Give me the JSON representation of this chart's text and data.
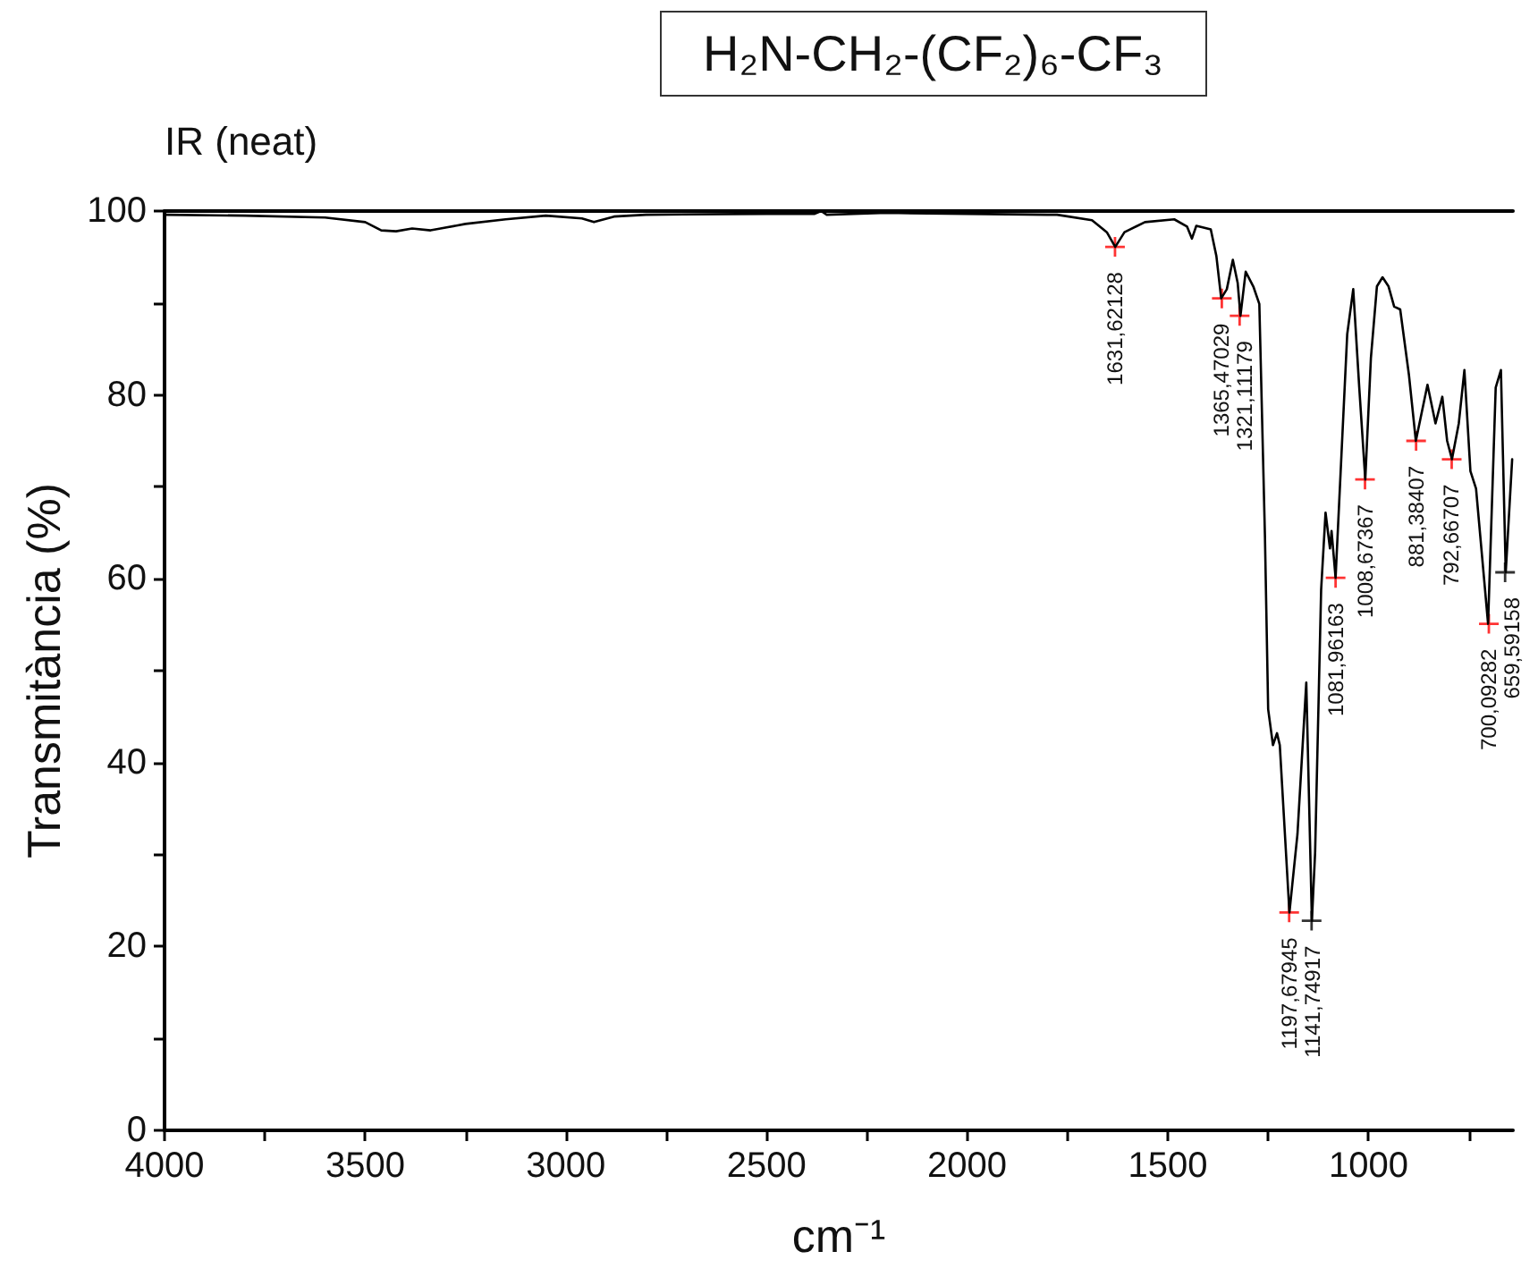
{
  "chart_data": {
    "type": "line",
    "title": "H₂N-CH₂-(CF₂)₆-CF₃",
    "subtitle": "IR (neat)",
    "xlabel": "cm⁻¹",
    "ylabel": "Transmitància (%)",
    "xlim": [
      4000,
      640
    ],
    "ylim": [
      0,
      100
    ],
    "xticks": [
      4000,
      {
        "value": 3750,
        "label": null
      },
      3500,
      {
        "value": 3250,
        "label": null
      },
      3000,
      {
        "value": 2750,
        "label": null
      },
      2500,
      {
        "value": 2250,
        "label": null
      },
      2000,
      {
        "value": 1750,
        "label": null
      },
      1500,
      {
        "value": 1250,
        "label": null
      },
      1000,
      {
        "value": 750,
        "label": null
      }
    ],
    "yticks": [
      0,
      {
        "value": 10,
        "label": null
      },
      20,
      {
        "value": 30,
        "label": null
      },
      40,
      {
        "value": 50,
        "label": null
      },
      60,
      {
        "value": 70,
        "label": null
      },
      80,
      {
        "value": 90,
        "label": null
      },
      100
    ],
    "grid": false,
    "line_style": "solid",
    "series": [
      {
        "color": "#000000",
        "marker": "none",
        "x": [
          4000,
          3800,
          3600,
          3500,
          3460,
          3423,
          3383,
          3337,
          3250,
          3150,
          3050,
          2960,
          2930,
          2880,
          2800,
          2500,
          2380,
          2364,
          2350,
          2200,
          2000,
          1800,
          1776,
          1689,
          1652,
          1631,
          1608,
          1557,
          1484,
          1452,
          1440,
          1429,
          1393,
          1379,
          1367,
          1353,
          1338,
          1326,
          1319,
          1306,
          1287,
          1272,
          1258,
          1250,
          1238,
          1228,
          1221,
          1197,
          1177,
          1155,
          1141,
          1133,
          1118,
          1107,
          1096,
          1092,
          1082,
          1053,
          1038,
          1023,
          1008,
          994,
          979,
          965,
          950,
          936,
          921,
          899,
          882,
          853,
          833,
          816,
          804,
          792,
          775,
          761,
          746,
          732,
          702,
          683,
          670,
          658,
          642
        ],
        "values": [
          99.6,
          99.5,
          99.3,
          98.8,
          97.9,
          97.8,
          98.1,
          97.9,
          98.6,
          99.1,
          99.5,
          99.2,
          98.8,
          99.4,
          99.6,
          99.7,
          99.7,
          100,
          99.6,
          99.8,
          99.7,
          99.6,
          99.6,
          99.0,
          97.7,
          96.1,
          97.7,
          98.8,
          99.1,
          98.3,
          97.0,
          98.4,
          98.0,
          95.1,
          90.5,
          91.5,
          94.7,
          92.2,
          88.6,
          93.4,
          91.8,
          89.9,
          64.6,
          45.8,
          41.9,
          43.2,
          41.9,
          23.7,
          32.2,
          48.7,
          22.8,
          30.2,
          58.8,
          67.2,
          63.3,
          65.2,
          60.1,
          86.6,
          91.5,
          80.8,
          70.8,
          84.0,
          91.8,
          92.8,
          91.8,
          89.6,
          89.3,
          82.1,
          75.0,
          81.1,
          76.9,
          79.8,
          75.0,
          73.0,
          76.9,
          82.7,
          71.7,
          69.8,
          55.1,
          80.8,
          82.7,
          60.7,
          73.0
        ]
      },
      {
        "type": "scatter",
        "marker": "cross",
        "x": [
          1631.62128,
          1365.47029,
          1321.11179,
          1197.67945,
          1141.74917,
          1081.96163,
          1008.67367,
          881.38407,
          792.66707,
          700.09282,
          659.59158
        ],
        "values": [
          96.1,
          90.5,
          88.6,
          23.7,
          22.8,
          60.1,
          70.8,
          75.0,
          73.0,
          55.1,
          60.7
        ],
        "colors": [
          "#ff0000",
          "#ff0000",
          "#ff0000",
          "#ff0000",
          "#000000",
          "#ff0000",
          "#ff0000",
          "#ff0000",
          "#ff0000",
          "#ff0000",
          "#000000"
        ]
      }
    ],
    "annotations": [
      {
        "text": "1631,62128",
        "x": 1631.62128,
        "y": 96.1
      },
      {
        "text": "1365,47029",
        "x": 1365.47029,
        "y": 90.5
      },
      {
        "text": "1321,11179",
        "x": 1321.11179,
        "y": 88.6
      },
      {
        "text": "1197,67945",
        "x": 1197.67945,
        "y": 23.7
      },
      {
        "text": "1141,74917",
        "x": 1141.74917,
        "y": 22.8
      },
      {
        "text": "1081,96163",
        "x": 1081.96163,
        "y": 60.1
      },
      {
        "text": "1008,67367",
        "x": 1008.67367,
        "y": 70.8
      },
      {
        "text": "881,38407",
        "x": 881.38407,
        "y": 75.0
      },
      {
        "text": "792,66707",
        "x": 792.66707,
        "y": 73.0
      },
      {
        "text": "700,09282",
        "x": 700.09282,
        "y": 55.1
      },
      {
        "text": "659,59158",
        "x": 659.59158,
        "y": 60.7
      }
    ]
  }
}
